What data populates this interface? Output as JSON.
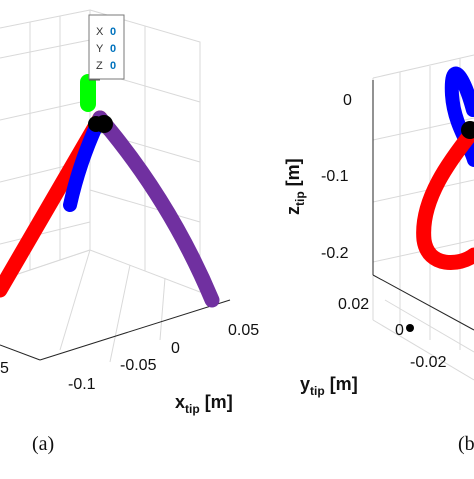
{
  "chart_data": [
    {
      "type": "3d-line",
      "panel_label": "(a)",
      "xlabel": "x",
      "xlabel_sub": "tip",
      "xlabel_unit": " [m]",
      "x_ticks": [
        "-0.1",
        "-0.05",
        "0",
        "0.05"
      ],
      "left_partial_tick": "5",
      "datatip": {
        "x_label": "X",
        "x_value": "0",
        "y_label": "Y",
        "y_value": "0",
        "z_label": "Z",
        "z_value": "0"
      },
      "series": [
        {
          "color": "#ff0000"
        },
        {
          "color": "#0000ff"
        },
        {
          "color": "#7030a0"
        },
        {
          "color": "#00ff00"
        },
        {
          "color": "#000000"
        }
      ]
    },
    {
      "type": "3d-line",
      "panel_label": "(b",
      "zlabel": "z",
      "zlabel_sub": "tip",
      "zlabel_unit": " [m]",
      "z_ticks": [
        "0",
        "-0.1",
        "-0.2"
      ],
      "ylabel": "y",
      "ylabel_sub": "tip",
      "ylabel_unit": " [m]",
      "y_ticks": [
        "0.02",
        "0",
        "-0.02"
      ],
      "series": [
        {
          "color": "#ff0000"
        },
        {
          "color": "#0000ff"
        },
        {
          "color": "#000000"
        }
      ]
    }
  ]
}
